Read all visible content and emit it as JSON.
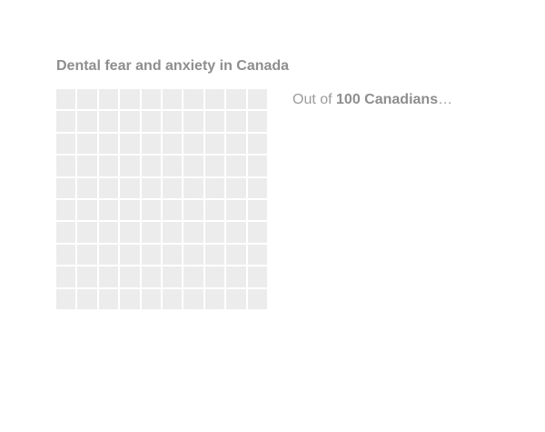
{
  "chart_data": {
    "type": "waffle",
    "title": "Dental fear and anxiety in Canada",
    "total_units": 100,
    "rows": 10,
    "columns": 10,
    "caption": {
      "prefix": "Out of ",
      "emphasis": "100 Canadians",
      "suffix": "…"
    },
    "series": [],
    "cell_color": "#ececec"
  }
}
